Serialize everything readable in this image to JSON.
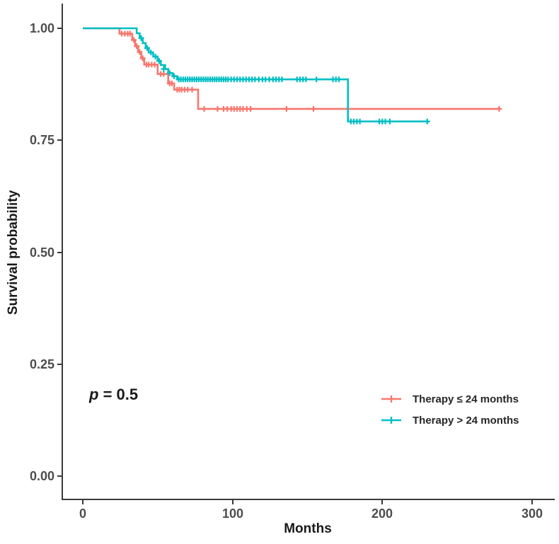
{
  "axes": {
    "x_title": "Months",
    "y_title": "Survival probability",
    "x_tick_labels": [
      "0",
      "100",
      "200",
      "300"
    ],
    "y_tick_labels": [
      "0.00",
      "0.25",
      "0.50",
      "0.75",
      "1.00"
    ]
  },
  "annotation": {
    "p_symbol": "p",
    "p_rest": " = 0.5"
  },
  "chart_data": {
    "type": "line",
    "subtype": "kaplan-meier-step",
    "title": "",
    "xlabel": "Months",
    "ylabel": "Survival probability",
    "xlim": [
      -14,
      314
    ],
    "ylim": [
      0,
      1.0
    ],
    "x_ticks": [
      0,
      100,
      200,
      300
    ],
    "y_ticks": [
      0.0,
      0.25,
      0.5,
      0.75,
      1.0
    ],
    "grid": false,
    "legend_position": "inside-lower-right",
    "p_value": "p = 0.5",
    "series": [
      {
        "name": "Therapy ≤ 24 months",
        "color": "#F8766D",
        "steps": [
          [
            0,
            1.0
          ],
          [
            24.5,
            0.988
          ],
          [
            33,
            0.974
          ],
          [
            35,
            0.96
          ],
          [
            37,
            0.947
          ],
          [
            39,
            0.933
          ],
          [
            41,
            0.919
          ],
          [
            50,
            0.898
          ],
          [
            57,
            0.877
          ],
          [
            61,
            0.863
          ],
          [
            77,
            0.82
          ],
          [
            278,
            0.82
          ]
        ],
        "censors": [
          [
            26,
            0.988
          ],
          [
            28,
            0.988
          ],
          [
            30,
            0.988
          ],
          [
            31.5,
            0.988
          ],
          [
            34,
            0.974
          ],
          [
            36,
            0.96
          ],
          [
            38,
            0.947
          ],
          [
            40,
            0.933
          ],
          [
            42.5,
            0.919
          ],
          [
            44,
            0.919
          ],
          [
            46,
            0.919
          ],
          [
            48,
            0.919
          ],
          [
            52,
            0.898
          ],
          [
            54,
            0.898
          ],
          [
            58,
            0.877
          ],
          [
            59.5,
            0.877
          ],
          [
            63,
            0.863
          ],
          [
            64.5,
            0.863
          ],
          [
            66,
            0.863
          ],
          [
            68,
            0.863
          ],
          [
            70,
            0.863
          ],
          [
            73,
            0.863
          ],
          [
            81,
            0.82
          ],
          [
            90,
            0.82
          ],
          [
            94,
            0.82
          ],
          [
            96.5,
            0.82
          ],
          [
            99,
            0.82
          ],
          [
            101,
            0.82
          ],
          [
            103,
            0.82
          ],
          [
            105,
            0.82
          ],
          [
            107,
            0.82
          ],
          [
            109.5,
            0.82
          ],
          [
            112,
            0.82
          ],
          [
            136,
            0.82
          ],
          [
            154,
            0.82
          ],
          [
            278,
            0.82
          ]
        ]
      },
      {
        "name": "Therapy > 24 months",
        "color": "#00BFC4",
        "steps": [
          [
            0,
            1.0
          ],
          [
            36,
            0.989
          ],
          [
            38,
            0.978
          ],
          [
            40,
            0.967
          ],
          [
            42,
            0.956
          ],
          [
            44,
            0.946
          ],
          [
            47,
            0.937
          ],
          [
            50,
            0.927
          ],
          [
            52,
            0.918
          ],
          [
            55,
            0.909
          ],
          [
            57,
            0.9
          ],
          [
            60,
            0.893
          ],
          [
            63,
            0.886
          ],
          [
            177,
            0.792
          ],
          [
            231,
            0.792
          ]
        ],
        "censors": [
          [
            39,
            0.978
          ],
          [
            43,
            0.956
          ],
          [
            45.5,
            0.946
          ],
          [
            48.5,
            0.937
          ],
          [
            51,
            0.927
          ],
          [
            54,
            0.909
          ],
          [
            58,
            0.9
          ],
          [
            61,
            0.893
          ],
          [
            64,
            0.886
          ],
          [
            65.5,
            0.886
          ],
          [
            67,
            0.886
          ],
          [
            68.5,
            0.886
          ],
          [
            70,
            0.886
          ],
          [
            71.5,
            0.886
          ],
          [
            73,
            0.886
          ],
          [
            74.5,
            0.886
          ],
          [
            76,
            0.886
          ],
          [
            77.5,
            0.886
          ],
          [
            79,
            0.886
          ],
          [
            80.5,
            0.886
          ],
          [
            82,
            0.886
          ],
          [
            83.5,
            0.886
          ],
          [
            85,
            0.886
          ],
          [
            86.5,
            0.886
          ],
          [
            88,
            0.886
          ],
          [
            89.5,
            0.886
          ],
          [
            91,
            0.886
          ],
          [
            92.5,
            0.886
          ],
          [
            94,
            0.886
          ],
          [
            95.5,
            0.886
          ],
          [
            97,
            0.886
          ],
          [
            99,
            0.886
          ],
          [
            101,
            0.886
          ],
          [
            103,
            0.886
          ],
          [
            105,
            0.886
          ],
          [
            107,
            0.886
          ],
          [
            109,
            0.886
          ],
          [
            111,
            0.886
          ],
          [
            113,
            0.886
          ],
          [
            115,
            0.886
          ],
          [
            117.5,
            0.886
          ],
          [
            120,
            0.886
          ],
          [
            122,
            0.886
          ],
          [
            124.5,
            0.886
          ],
          [
            127,
            0.886
          ],
          [
            129,
            0.886
          ],
          [
            131,
            0.886
          ],
          [
            133,
            0.886
          ],
          [
            143,
            0.886
          ],
          [
            145,
            0.886
          ],
          [
            147,
            0.886
          ],
          [
            149,
            0.886
          ],
          [
            156,
            0.886
          ],
          [
            167,
            0.886
          ],
          [
            169,
            0.886
          ],
          [
            171,
            0.886
          ],
          [
            179,
            0.792
          ],
          [
            181,
            0.792
          ],
          [
            183,
            0.792
          ],
          [
            185,
            0.792
          ],
          [
            198,
            0.792
          ],
          [
            200,
            0.792
          ],
          [
            202,
            0.792
          ],
          [
            205,
            0.792
          ],
          [
            230,
            0.792
          ]
        ]
      }
    ]
  }
}
